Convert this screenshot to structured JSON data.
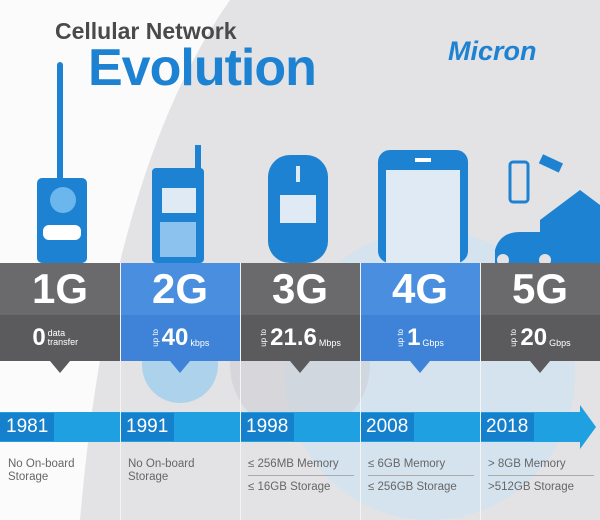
{
  "header": {
    "title_line1": "Cellular Network",
    "title_line2": "Evolution",
    "logo": "Micron"
  },
  "colors": {
    "blue": "#1e82d2",
    "gray_band": "#5b5b5d",
    "blue_band": "#3f83d8",
    "timeline": "#1fa0e0"
  },
  "generations": [
    {
      "label": "1G",
      "speed": "0",
      "speed_prefix": "",
      "unit": "data transfer",
      "year": "1981",
      "spec_line1": "No On-board",
      "spec_line2": "Storage",
      "device": "brick-phone-icon"
    },
    {
      "label": "2G",
      "speed": "40",
      "speed_prefix": "up to",
      "unit": "kbps",
      "year": "1991",
      "spec_line1": "No On-board",
      "spec_line2": "Storage",
      "device": "feature-phone-icon"
    },
    {
      "label": "3G",
      "speed": "21.6",
      "speed_prefix": "up to",
      "unit": "Mbps",
      "year": "1998",
      "spec_line1": "≤ 256MB Memory",
      "spec_line2": "≤ 16GB Storage",
      "device": "candybar-phone-icon"
    },
    {
      "label": "4G",
      "speed": "1",
      "speed_prefix": "up to",
      "unit": "Gbps",
      "year": "2008",
      "spec_line1": "≤ 6GB Memory",
      "spec_line2": "≤ 256GB Storage",
      "device": "smartphone-icon"
    },
    {
      "label": "5G",
      "speed": "20",
      "speed_prefix": "up to",
      "unit": "Gbps",
      "year": "2018",
      "spec_line1": "> 8GB Memory",
      "spec_line2": ">512GB Storage",
      "device": "iot-devices-icon"
    }
  ]
}
